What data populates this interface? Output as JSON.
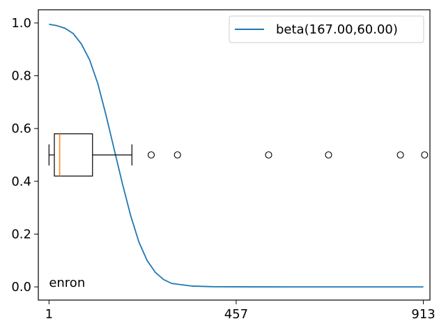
{
  "chart_data": {
    "type": "line",
    "title": "",
    "xlabel": "",
    "ylabel": "",
    "xlim": [
      -25,
      929
    ],
    "ylim": [
      -0.05,
      1.05
    ],
    "x_ticks": [
      1,
      457,
      913
    ],
    "x_tick_labels": [
      "1",
      "457",
      "913"
    ],
    "y_ticks": [
      0.0,
      0.2,
      0.4,
      0.6,
      0.8,
      1.0
    ],
    "y_tick_labels": [
      "0.0",
      "0.2",
      "0.4",
      "0.6",
      "0.8",
      "1.0"
    ],
    "grid": false,
    "legend_position": "top-right",
    "series": [
      {
        "name": "beta(167.00,60.00)",
        "color": "#1f77b4",
        "kind": "survival-curve",
        "x": [
          1,
          20,
          40,
          60,
          80,
          100,
          120,
          140,
          160,
          180,
          200,
          220,
          240,
          260,
          280,
          300,
          350,
          400,
          500,
          600,
          700,
          800,
          913
        ],
        "y": [
          0.995,
          0.99,
          0.98,
          0.96,
          0.92,
          0.86,
          0.77,
          0.65,
          0.52,
          0.39,
          0.27,
          0.17,
          0.1,
          0.055,
          0.028,
          0.013,
          0.003,
          0.0007,
          0.0001,
          0.0,
          0.0,
          0.0,
          0.0
        ]
      }
    ],
    "boxplot": {
      "y_position": 0.5,
      "box_height": 0.16,
      "whisker_low": 1,
      "q1": 14,
      "median": 27,
      "q3": 107,
      "whisker_high": 203,
      "outliers": [
        250,
        314,
        536,
        682,
        857,
        916
      ],
      "box_color": "#000000",
      "median_color": "#ff7f0e"
    },
    "annotations": [
      {
        "text": "enron",
        "x": 1,
        "y": 0.0
      }
    ]
  }
}
